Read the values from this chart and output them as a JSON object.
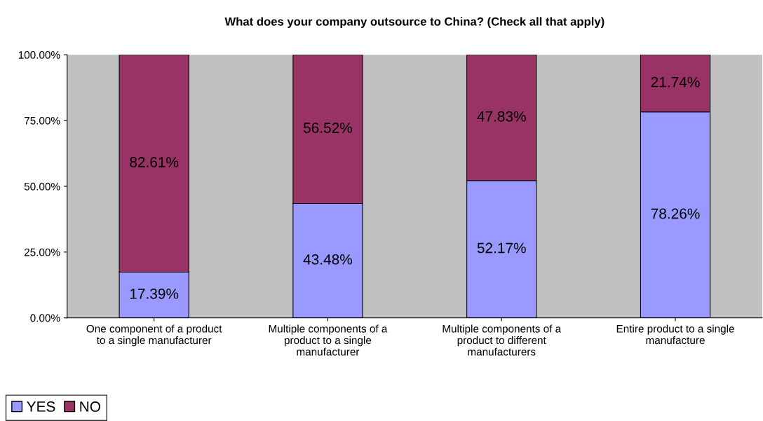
{
  "chart_data": {
    "type": "bar",
    "stacked": true,
    "title": "What does your company outsource to China? (Check all that apply)",
    "categories": [
      "One component of a product\nto a single manufacturer",
      "Multiple components of a\nproduct to a single\nmanufacturer",
      "Multiple components of a\nproduct to different\nmanufacturers",
      "Entire product to a single\nmanufacture"
    ],
    "series": [
      {
        "name": "YES",
        "color": "#9999ff",
        "values": [
          17.39,
          43.48,
          52.17,
          78.26
        ],
        "value_labels": [
          "17.39%",
          "43.48%",
          "52.17%",
          "78.26%"
        ]
      },
      {
        "name": "NO",
        "color": "#993366",
        "values": [
          82.61,
          56.52,
          47.83,
          21.74
        ],
        "value_labels": [
          "82.61%",
          "56.52%",
          "47.83%",
          "21.74%"
        ]
      }
    ],
    "ylim": [
      0,
      100
    ],
    "yticks": [
      {
        "value": 0,
        "label": "0.00%"
      },
      {
        "value": 25,
        "label": "25.00%"
      },
      {
        "value": 50,
        "label": "50.00%"
      },
      {
        "value": 75,
        "label": "75.00%"
      },
      {
        "value": 100,
        "label": "100.00%"
      }
    ],
    "grid": false,
    "legend": "bottom left"
  }
}
